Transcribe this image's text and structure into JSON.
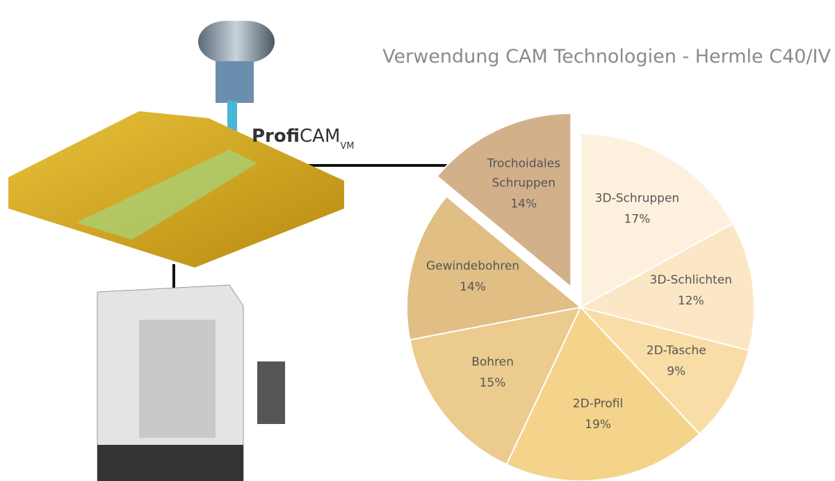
{
  "chart_data": {
    "type": "pie",
    "title": "Verwendung CAM Technologien - Hermle C40/IV",
    "categories": [
      "3D-Schruppen",
      "3D-Schlichten",
      "2D-Tasche",
      "2D-Profil",
      "Bohren",
      "Gewindebohren",
      "Trochoidales Schruppen"
    ],
    "values": [
      17,
      12,
      9,
      19,
      15,
      14,
      14
    ],
    "value_labels": [
      "17%",
      "12%",
      "9%",
      "19%",
      "15%",
      "14%",
      "14%"
    ],
    "colors": [
      "#fdf1de",
      "#fbe7c6",
      "#f8dea6",
      "#f4d48a",
      "#eccb8e",
      "#e0be84",
      "#d2b08a"
    ],
    "exploded": [
      false,
      false,
      false,
      false,
      false,
      false,
      true
    ]
  },
  "logo": {
    "bold": "Profi",
    "rest": "CAM",
    "sub": "VM"
  }
}
